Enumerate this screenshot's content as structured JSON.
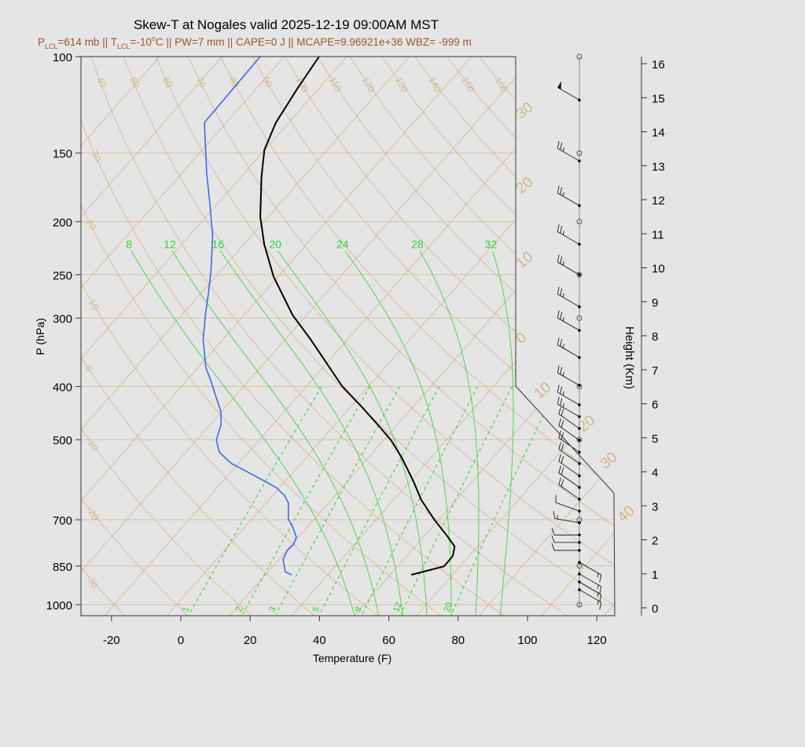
{
  "chart_data": {
    "type": "skew-t",
    "title": "Skew-T at Nogales valid 2025-12-19 09:00AM MST",
    "subtitle": {
      "plcl_label": "P",
      "plcl_sub": "LCL",
      "plcl_value": "=614 mb || ",
      "tlcl_label": "T",
      "tlcl_sub": "LCL",
      "tlcl_value": "=-10",
      "tlcl_deg": "o",
      "tlcl_rest": "C || PW=7 mm || CAPE=0 J || MCAPE=9.96921e+36 WBZ= -999 m"
    },
    "xlabel": "Temperature (F)",
    "ylabel": "P (hPa)",
    "y2label": "Height (Km)",
    "xlim": [
      -28,
      125
    ],
    "ylim_hpa": [
      1050,
      100
    ],
    "x_ticks": [
      "-20",
      "0",
      "20",
      "40",
      "60",
      "80",
      "100",
      "120"
    ],
    "x_tick_values": [
      -20,
      0,
      20,
      40,
      60,
      80,
      100,
      120
    ],
    "y_ticks": [
      "100",
      "150",
      "200",
      "250",
      "300",
      "400",
      "500",
      "700",
      "850",
      "1000"
    ],
    "y_tick_values": [
      100,
      150,
      200,
      250,
      300,
      400,
      500,
      700,
      850,
      1000
    ],
    "height_ticks": [
      "0",
      "1",
      "2",
      "3",
      "4",
      "5",
      "6",
      "7",
      "8",
      "9",
      "10",
      "11",
      "12",
      "13",
      "14",
      "15",
      "16"
    ],
    "dry_adiabats_c": [
      -30,
      -20,
      -10,
      0,
      10,
      20,
      30,
      40,
      50,
      60,
      70,
      80,
      90,
      100,
      110,
      120,
      130,
      140,
      150,
      160
    ],
    "dry_adiabat_labels": [
      "-30",
      "-20",
      "-10",
      "0",
      "10",
      "20",
      "30",
      "40",
      "50",
      "60",
      "70",
      "80",
      "90",
      "100",
      "110",
      "120",
      "130",
      "140",
      "150",
      "160"
    ],
    "isotherms_c": [
      -100,
      -90,
      -80,
      -70,
      -60,
      -50,
      -40,
      -30,
      -20,
      -10,
      0,
      10,
      20,
      30,
      40,
      50
    ],
    "isotherm_labels": [
      {
        "t": -30,
        "text": "30"
      },
      {
        "t": -20,
        "text": "20"
      },
      {
        "t": -10,
        "text": "10"
      },
      {
        "t": 0,
        "text": "0"
      },
      {
        "t": 10,
        "text": "10"
      },
      {
        "t": 20,
        "text": "20"
      },
      {
        "t": 30,
        "text": "30"
      },
      {
        "t": 40,
        "text": "40"
      }
    ],
    "moist_adiabats_c": [
      8,
      12,
      16,
      20,
      24,
      28,
      32
    ],
    "moist_adiabat_labels": [
      "8",
      "12",
      "16",
      "20",
      "24",
      "28",
      "32"
    ],
    "mixing_ratios_gkg": [
      1,
      2,
      3,
      5,
      8,
      12,
      20
    ],
    "mixing_ratio_labels": [
      "1",
      "2",
      "3",
      "5",
      "8",
      "12",
      "20"
    ],
    "temperature": {
      "color": "#000000",
      "points": [
        [
          882,
          56.1
        ],
        [
          851,
          63.4
        ],
        [
          815,
          63.3
        ],
        [
          783,
          61.4
        ],
        [
          746,
          56.1
        ],
        [
          698,
          48.5
        ],
        [
          644,
          40.0
        ],
        [
          593,
          32.6
        ],
        [
          539,
          23.6
        ],
        [
          501,
          16.1
        ],
        [
          474,
          9.5
        ],
        [
          436,
          -0.7
        ],
        [
          399,
          -11.8
        ],
        [
          328,
          -32.7
        ],
        [
          296,
          -44.1
        ],
        [
          252,
          -59.3
        ],
        [
          220,
          -70.2
        ],
        [
          196,
          -78.3
        ],
        [
          166,
          -88.0
        ],
        [
          148,
          -94.1
        ],
        [
          132,
          -97.7
        ],
        [
          114,
          -100.2
        ],
        [
          100,
          -102.0
        ]
      ]
    },
    "dewpoint": {
      "color": "#4169e1",
      "points": [
        [
          882,
          21.6
        ],
        [
          871,
          19.0
        ],
        [
          828,
          15.3
        ],
        [
          796,
          14.1
        ],
        [
          778,
          14.5
        ],
        [
          753,
          13.4
        ],
        [
          721,
          9.7
        ],
        [
          698,
          6.5
        ],
        [
          653,
          2.5
        ],
        [
          632,
          -0.6
        ],
        [
          611,
          -5.1
        ],
        [
          588,
          -12.2
        ],
        [
          552,
          -24.2
        ],
        [
          527,
          -30.4
        ],
        [
          501,
          -34.3
        ],
        [
          469,
          -36.9
        ],
        [
          444,
          -40.3
        ],
        [
          418,
          -45.3
        ],
        [
          391,
          -50.8
        ],
        [
          369,
          -55.8
        ],
        [
          328,
          -63.7
        ],
        [
          294,
          -69.6
        ],
        [
          269,
          -74.1
        ],
        [
          246,
          -78.8
        ],
        [
          212,
          -87.3
        ],
        [
          186,
          -96.0
        ],
        [
          163,
          -104.9
        ],
        [
          132,
          -118.3
        ],
        [
          100,
          -119.0
        ]
      ]
    },
    "winds_hpa_deg_kt": [
      [
        120,
        300,
        50
      ],
      [
        155,
        300,
        25
      ],
      [
        187,
        300,
        25
      ],
      [
        220,
        300,
        25
      ],
      [
        250,
        300,
        25
      ],
      [
        286,
        300,
        25
      ],
      [
        316,
        300,
        25
      ],
      [
        354,
        300,
        25
      ],
      [
        398,
        300,
        25
      ],
      [
        432,
        300,
        25
      ],
      [
        454,
        300,
        25
      ],
      [
        477,
        305,
        20
      ],
      [
        501,
        305,
        20
      ],
      [
        527,
        305,
        20
      ],
      [
        553,
        305,
        20
      ],
      [
        582,
        305,
        20
      ],
      [
        611,
        305,
        20
      ],
      [
        642,
        305,
        20
      ],
      [
        675,
        290,
        10
      ],
      [
        709,
        280,
        15
      ],
      [
        746,
        270,
        10
      ],
      [
        770,
        270,
        10
      ],
      [
        796,
        270,
        10
      ],
      [
        837,
        120,
        15
      ],
      [
        879,
        120,
        15
      ],
      [
        909,
        120,
        15
      ],
      [
        939,
        120,
        15
      ]
    ],
    "grid_color": "#d2b48c",
    "moist_color": "#32cd32",
    "mixing_color": "#32cd32"
  }
}
